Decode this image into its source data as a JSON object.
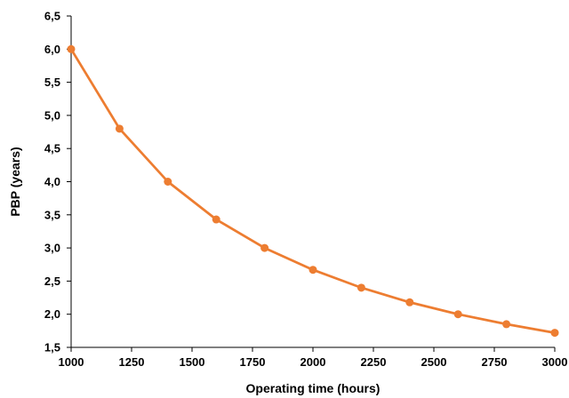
{
  "chart_data": {
    "type": "line",
    "title": "",
    "xlabel": "Operating time (hours)",
    "ylabel": "PBP (years)",
    "x": [
      1000,
      1200,
      1400,
      1600,
      1800,
      2000,
      2200,
      2400,
      2600,
      2800,
      3000
    ],
    "series": [
      {
        "values": [
          6.0,
          4.8,
          4.0,
          3.43,
          3.0,
          2.67,
          2.4,
          2.18,
          2.0,
          1.85,
          1.72
        ],
        "color": "#ED7D31"
      }
    ],
    "xlim": [
      1000,
      3000
    ],
    "ylim": [
      1.5,
      6.5
    ],
    "x_ticks": [
      1000,
      1250,
      1500,
      1750,
      2000,
      2250,
      2500,
      2750,
      3000
    ],
    "y_ticks": [
      1.5,
      2.0,
      2.5,
      3.0,
      3.5,
      4.0,
      4.5,
      5.0,
      5.5,
      6.0,
      6.5
    ],
    "x_tick_labels": [
      "1000",
      "1250",
      "1500",
      "1750",
      "2000",
      "2250",
      "2500",
      "2750",
      "3000"
    ],
    "y_tick_labels": [
      "1,5",
      "2,0",
      "2,5",
      "3,0",
      "3,5",
      "4,0",
      "4,5",
      "5,0",
      "5,5",
      "6,0",
      "6,5"
    ],
    "grid": false,
    "legend": "none",
    "axis_color": "#000000"
  }
}
